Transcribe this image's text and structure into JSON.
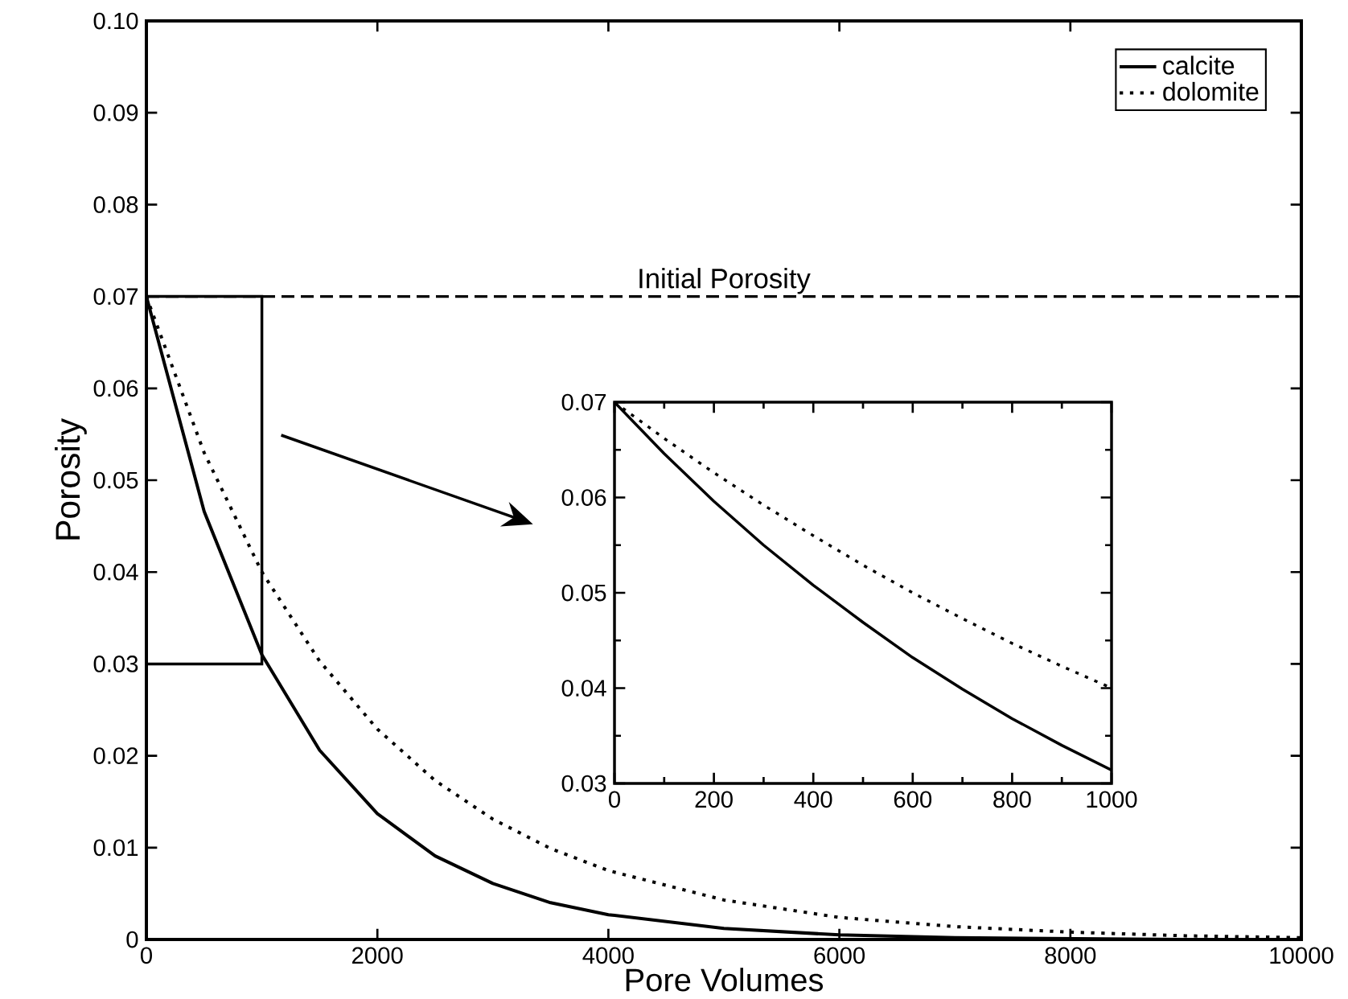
{
  "chart_data": [
    {
      "type": "line",
      "xlabel": "Pore Volumes",
      "ylabel": "Porosity",
      "x": [
        0,
        500,
        1000,
        1500,
        2000,
        2500,
        3000,
        3500,
        4000,
        5000,
        6000,
        7000,
        8000,
        9000,
        10000
      ],
      "series": [
        {
          "name": "calcite",
          "color": "#000000",
          "line_style": "solid",
          "values": [
            0.07,
            0.0466,
            0.031,
            0.0206,
            0.0137,
            0.0091,
            0.0061,
            0.004,
            0.0027,
            0.0012,
            0.0005,
            0.0002,
            0.0001,
            0.0,
            0.0
          ]
        },
        {
          "name": "dolomite",
          "color": "#000000",
          "line_style": "dotted",
          "values": [
            0.07,
            0.053,
            0.04,
            0.0303,
            0.0229,
            0.0173,
            0.0131,
            0.0099,
            0.0075,
            0.0043,
            0.0024,
            0.0014,
            0.0008,
            0.0004,
            0.0002
          ]
        }
      ],
      "xlim": [
        0,
        10000
      ],
      "xticks": [
        0,
        2000,
        4000,
        6000,
        8000,
        10000
      ],
      "ylim": [
        0,
        0.1
      ],
      "yticks": [
        0,
        0.01,
        0.02,
        0.03,
        0.04,
        0.05,
        0.06,
        0.07,
        0.08,
        0.09,
        {
          "value": 0.1,
          "label": "0.10"
        }
      ],
      "ref_lines": [
        {
          "axis": "y",
          "value": 0.07,
          "label": "Initial Porosity",
          "line_style": "dashed",
          "color": "#000000"
        }
      ],
      "legend": "top right",
      "marker": "none"
    },
    {
      "type": "line",
      "x": [
        0,
        100,
        200,
        300,
        400,
        500,
        600,
        700,
        800,
        900,
        1000
      ],
      "series": [
        {
          "color": "#000000",
          "line_style": "solid",
          "values": [
            0.07,
            0.0646,
            0.0596,
            0.055,
            0.0508,
            0.0469,
            0.0432,
            0.0399,
            0.0368,
            0.034,
            0.0314
          ]
        },
        {
          "color": "#000000",
          "line_style": "dotted",
          "values": [
            0.07,
            0.0662,
            0.0626,
            0.0592,
            0.056,
            0.0529,
            0.05,
            0.0473,
            0.0447,
            0.0423,
            0.04
          ]
        }
      ],
      "xlim": [
        0,
        1000
      ],
      "xticks": [
        0,
        200,
        400,
        600,
        800,
        1000
      ],
      "ylim": [
        0.03,
        0.07
      ],
      "yticks": [
        0.03,
        0.04,
        0.05,
        0.06,
        0.07
      ],
      "legend": false,
      "marker": "none"
    }
  ]
}
